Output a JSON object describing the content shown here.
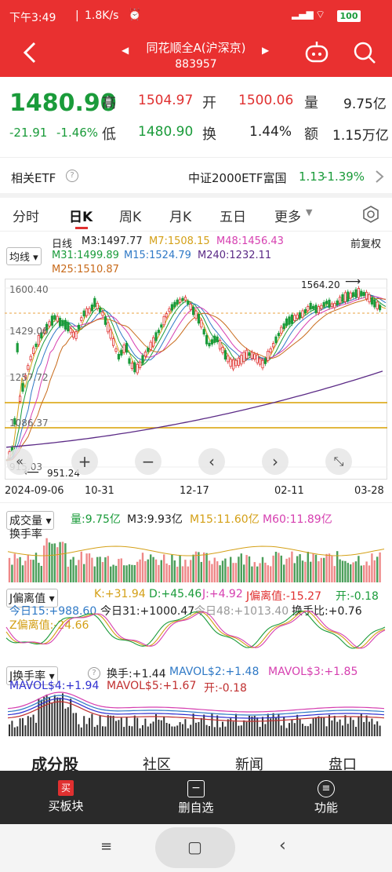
{
  "status": {
    "time": "下午3:49",
    "speed": "1.8K/s",
    "battery": "100"
  },
  "header": {
    "title": "同花顺全A(沪深京)",
    "code": "883957"
  },
  "quote": {
    "price": "1480.90",
    "change": "-21.91",
    "change_pct": "-1.46%",
    "high_label": "高",
    "high": "1504.97",
    "open_label": "开",
    "open": "1500.06",
    "vol_label": "量",
    "vol": "9.75亿",
    "low_label": "低",
    "low": "1480.90",
    "turn_label": "换",
    "turn": "1.44%",
    "amt_label": "额",
    "amt": "1.15万亿"
  },
  "etf": {
    "label": "相关ETF",
    "name": "中证2000ETF富国",
    "price": "1.13",
    "pct": "-1.39%"
  },
  "tabs": [
    "分时",
    "日K",
    "周K",
    "月K",
    "五日",
    "更多"
  ],
  "chart": {
    "ma_label": "均线",
    "line_type": "日线",
    "fq": "前复权",
    "ma": [
      {
        "text": "M3:1497.77",
        "color": "#333333"
      },
      {
        "text": "M7:1508.15",
        "color": "#d4a017"
      },
      {
        "text": "M48:1456.43",
        "color": "#d63fb0"
      },
      {
        "text": "M31:1499.89",
        "color": "#1a9b3a"
      },
      {
        "text": "M15:1524.79",
        "color": "#2f79c6"
      },
      {
        "text": "M240:1232.11",
        "color": "#5b2a86"
      },
      {
        "text": "M25:1510.87",
        "color": "#c86a1a"
      }
    ],
    "y_ticks": [
      "1600.40",
      "1429.06",
      "1257.72",
      "1086.37",
      "915.03"
    ],
    "high_mark": "1564.20",
    "low_mark": "951.24",
    "x_ticks": [
      "2024-09-06",
      "10-31",
      "12-17",
      "02-11",
      "03-28"
    ],
    "ctrls": [
      "+",
      "−",
      "‹",
      "›",
      "⤡"
    ]
  },
  "volume": {
    "label": "成交量",
    "items": [
      {
        "text": "量:9.75亿",
        "color": "#1a9b3a"
      },
      {
        "text": "M3:9.93亿",
        "color": "#333333"
      },
      {
        "text": "M15:11.60亿",
        "color": "#d4a017"
      },
      {
        "text": "M60:11.89亿",
        "color": "#d63fb0"
      }
    ],
    "sub": "换手率"
  },
  "jbias": {
    "label": "J偏离值",
    "items": [
      {
        "text": "K:+31.94",
        "color": "#d4a017"
      },
      {
        "text": "D:+45.46",
        "color": "#1a9b3a"
      },
      {
        "text": "J:+4.92",
        "color": "#d63fb0"
      },
      {
        "text": "J偏离值:-15.27",
        "color": "#e03030"
      },
      {
        "text": "开:-0.18",
        "color": "#1a9b3a"
      }
    ],
    "row2": [
      {
        "text": "今日15:+988.60",
        "color": "#2f79c6"
      },
      {
        "text": "今日31:+1000.47",
        "color": "#333333"
      },
      {
        "text": "今日48:+1013.40",
        "color": "#999999"
      },
      {
        "text": "换手比:+0.76",
        "color": "#333333"
      }
    ],
    "row3": {
      "text": "Z偏离值:-24.66",
      "color": "#d4a017"
    }
  },
  "jturn": {
    "label": "J换手率",
    "items": [
      {
        "text": "换手:+1.44",
        "color": "#333333"
      },
      {
        "text": "MAVOL$2:+1.48",
        "color": "#2f79c6"
      },
      {
        "text": "MAVOL$3:+1.85",
        "color": "#d63fb0"
      }
    ],
    "row2": [
      {
        "text": "MAVOL$4:+1.94",
        "color": "#2f2fd0"
      },
      {
        "text": "MAVOL$5:+1.67",
        "color": "#c03030"
      },
      {
        "text": "开:-0.18",
        "color": "#c03030"
      }
    ]
  },
  "bottom_tabs": [
    "成分股",
    "社区",
    "新闻",
    "盘口"
  ],
  "actions": [
    {
      "label": "买板块",
      "icon": "买"
    },
    {
      "label": "删自选",
      "icon": "−"
    },
    {
      "label": "功能",
      "icon": "≡"
    }
  ],
  "nav": [
    "≡",
    "▢",
    "‹"
  ]
}
